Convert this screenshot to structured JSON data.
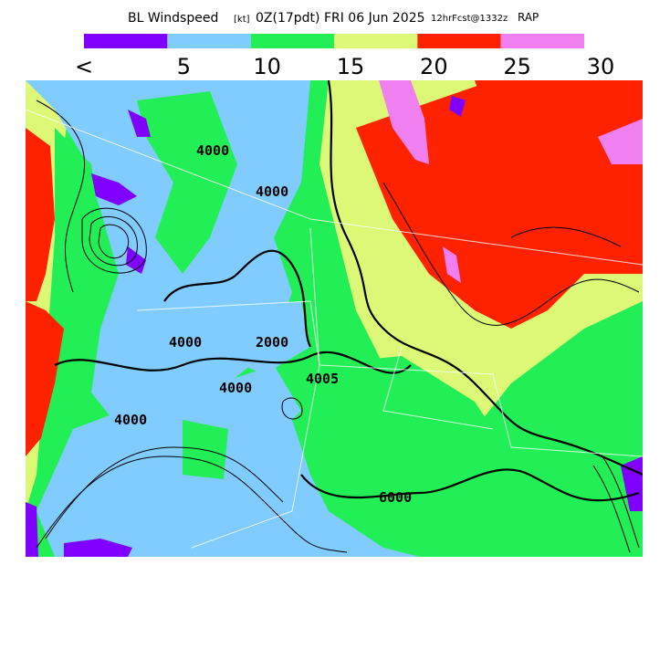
{
  "header": {
    "title": "BL Windspeed",
    "units": "[kt]",
    "time": "0Z(17pdt) FRI 06 Jun 2025",
    "forecast": "12hrFcst@1332z",
    "model": "RAP"
  },
  "legend": {
    "colors": [
      "#8000ff",
      "#80ccff",
      "#22ee55",
      "#ddf877",
      "#ff2200",
      "#f080f0"
    ],
    "labels": [
      "<",
      "5",
      "10",
      "15",
      "20",
      "25",
      "30"
    ]
  },
  "map": {
    "contour_labels": [
      "4000",
      "4000",
      "4000",
      "4000",
      "4005",
      "4000",
      "6000",
      "2000"
    ]
  }
}
